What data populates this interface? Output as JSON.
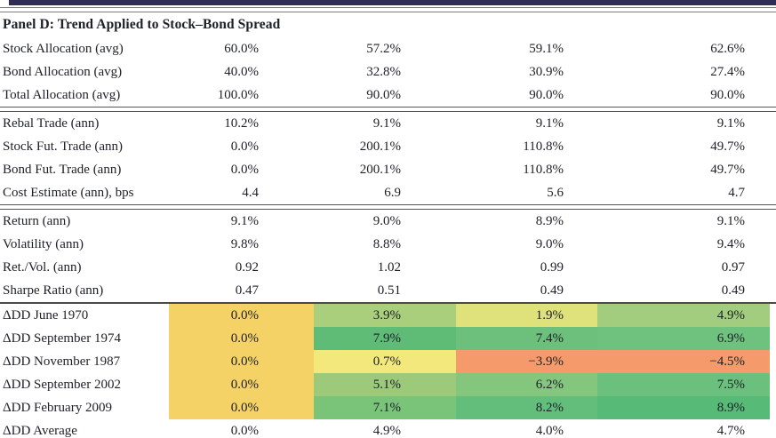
{
  "panel": {
    "title": "Panel D: Trend Applied to Stock–Bond Spread"
  },
  "colors": {
    "top_bar": "#2f2d52",
    "heat_yellow": "#f5d266",
    "heat_pale_yellow": "#f3e87c",
    "heat_yellow_green": "#dfe27b",
    "heat_orange": "#f49a6b",
    "text": "#1d2028"
  },
  "table": {
    "sections": [
      {
        "divider_after": "double",
        "rows": [
          {
            "label": "Stock Allocation (avg)",
            "values": [
              "60.0%",
              "57.2%",
              "59.1%",
              "62.6%"
            ]
          },
          {
            "label": "Bond Allocation (avg)",
            "values": [
              "40.0%",
              "32.8%",
              "30.9%",
              "27.4%"
            ]
          },
          {
            "label": "Total Allocation (avg)",
            "values": [
              "100.0%",
              "90.0%",
              "90.0%",
              "90.0%"
            ]
          }
        ]
      },
      {
        "divider_after": "double",
        "rows": [
          {
            "label": "Rebal Trade (ann)",
            "values": [
              "10.2%",
              "9.1%",
              "9.1%",
              "9.1%"
            ]
          },
          {
            "label": "Stock Fut. Trade (ann)",
            "values": [
              "0.0%",
              "200.1%",
              "110.8%",
              "49.7%"
            ]
          },
          {
            "label": "Bond Fut. Trade (ann)",
            "values": [
              "0.0%",
              "200.1%",
              "110.8%",
              "49.7%"
            ]
          },
          {
            "label": "Cost Estimate (ann), bps",
            "values": [
              "4.4",
              "6.9",
              "5.6",
              "4.7"
            ]
          }
        ]
      },
      {
        "divider_after": "single",
        "rows": [
          {
            "label": "Return (ann)",
            "values": [
              "9.1%",
              "9.0%",
              "8.9%",
              "9.1%"
            ]
          },
          {
            "label": "Volatility (ann)",
            "values": [
              "9.8%",
              "8.8%",
              "9.0%",
              "9.4%"
            ]
          },
          {
            "label": "Ret./Vol. (ann)",
            "values": [
              "0.92",
              "1.02",
              "0.99",
              "0.97"
            ]
          },
          {
            "label": "Sharpe Ratio (ann)",
            "values": [
              "0.47",
              "0.51",
              "0.49",
              "0.49"
            ]
          }
        ]
      },
      {
        "divider_after": "bottom",
        "rows": [
          {
            "label": "ΔDD June 1970",
            "values": [
              "0.0%",
              "3.9%",
              "1.9%",
              "4.9%"
            ],
            "cell_colors": [
              "#f5d266",
              "#a9cf7d",
              "#dfe27b",
              "#a3cd7e"
            ]
          },
          {
            "label": "ΔDD September 1974",
            "values": [
              "0.0%",
              "7.9%",
              "7.4%",
              "6.9%"
            ],
            "cell_colors": [
              "#f5d266",
              "#5fbc77",
              "#6cc07b",
              "#6fc27d"
            ]
          },
          {
            "label": "ΔDD November 1987",
            "values": [
              "0.0%",
              "0.7%",
              "−3.9%",
              "−4.5%"
            ],
            "cell_colors": [
              "#f5d266",
              "#f3e87c",
              "#f49a6b",
              "#f49a6b"
            ]
          },
          {
            "label": "ΔDD September 2002",
            "values": [
              "0.0%",
              "5.1%",
              "6.2%",
              "7.5%"
            ],
            "cell_colors": [
              "#f5d266",
              "#9cca7a",
              "#84c67e",
              "#6cc07d"
            ]
          },
          {
            "label": "ΔDD February 2009",
            "values": [
              "0.0%",
              "7.1%",
              "8.2%",
              "8.9%"
            ],
            "cell_colors": [
              "#f5d266",
              "#79c478",
              "#64be7b",
              "#57ba77"
            ]
          },
          {
            "label": "ΔDD Average",
            "values": [
              "0.0%",
              "4.9%",
              "4.0%",
              "4.7%"
            ],
            "cell_colors": null
          }
        ]
      }
    ]
  }
}
